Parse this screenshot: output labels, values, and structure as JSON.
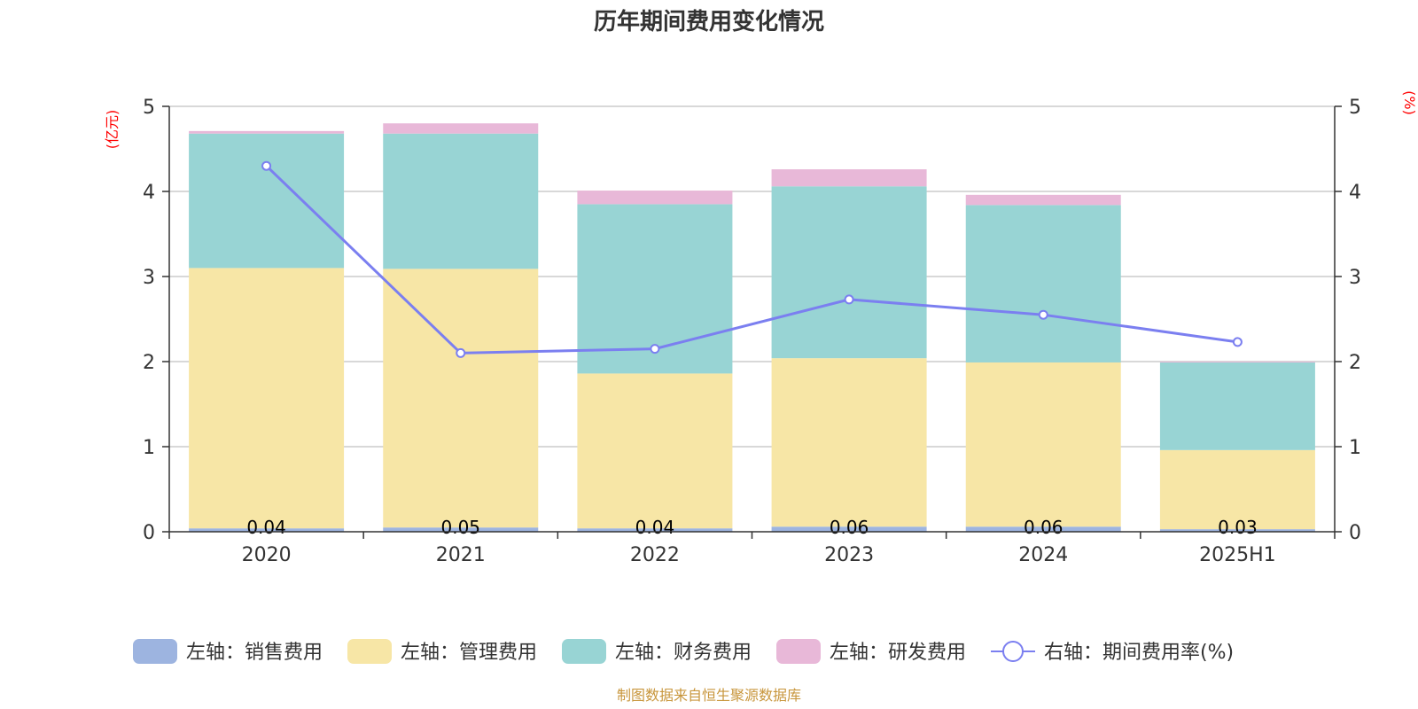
{
  "chart_data": {
    "type": "bar",
    "title": "历年期间费用变化情况",
    "categories": [
      "2020",
      "2021",
      "2022",
      "2023",
      "2024",
      "2025H1"
    ],
    "left_axis": {
      "unit": "(亿元)",
      "ylim": [
        0,
        5
      ],
      "ticks": [
        "0",
        "1",
        "2",
        "3",
        "4",
        "5"
      ]
    },
    "right_axis": {
      "unit": "(%)",
      "ylim": [
        0,
        5
      ],
      "ticks": [
        "0",
        "1",
        "2",
        "3",
        "4",
        "5"
      ]
    },
    "grid": true,
    "stacked": true,
    "legend_position": "bottom",
    "series": [
      {
        "name": "左轴：销售费用",
        "kind": "bar",
        "axis": "left",
        "color": "#9db4e0",
        "values": [
          0.04,
          0.05,
          0.04,
          0.06,
          0.06,
          0.03
        ],
        "labels": [
          "0.04",
          "0.05",
          "0.04",
          "0.06",
          "0.06",
          "0.03"
        ]
      },
      {
        "name": "左轴：管理费用",
        "kind": "bar",
        "axis": "left",
        "color": "#f7e6a6",
        "values": [
          3.06,
          3.04,
          1.82,
          1.98,
          1.93,
          0.93
        ]
      },
      {
        "name": "左轴：财务费用",
        "kind": "bar",
        "axis": "left",
        "color": "#98d4d4",
        "values": [
          1.58,
          1.59,
          1.99,
          2.02,
          1.85,
          1.03
        ]
      },
      {
        "name": "左轴：研发费用",
        "kind": "bar",
        "axis": "left",
        "color": "#e8b8d8",
        "values": [
          0.03,
          0.12,
          0.16,
          0.2,
          0.12,
          0.01
        ]
      },
      {
        "name": "右轴：期间费用率(%)",
        "kind": "line",
        "axis": "right",
        "color": "#7b7ff0",
        "values": [
          4.3,
          2.1,
          2.15,
          2.73,
          2.55,
          2.23
        ]
      }
    ],
    "source": "制图数据来自恒生聚源数据库"
  }
}
